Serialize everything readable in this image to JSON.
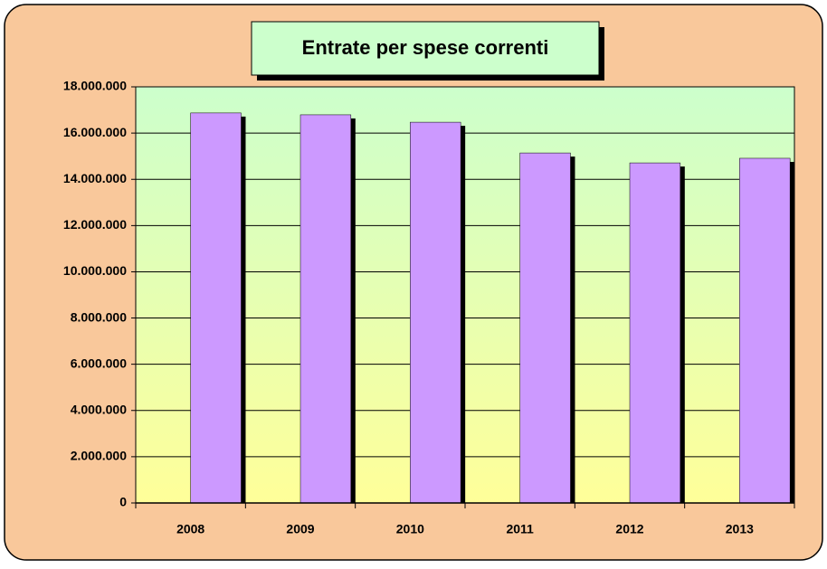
{
  "chart_data": {
    "type": "bar",
    "title": "Entrate per spese correnti",
    "categories": [
      "2008",
      "2009",
      "2010",
      "2011",
      "2012",
      "2013"
    ],
    "values": [
      16870000,
      16790000,
      16470000,
      15140000,
      14710000,
      14910000
    ],
    "color": "#cc99ff",
    "ylim": [
      0,
      18000000
    ],
    "yticks": [
      0,
      {
        "value": 2000000,
        "label": "2.000.000"
      },
      {
        "value": 4000000,
        "label": "4.000.000"
      },
      {
        "value": 6000000,
        "label": "6.000.000"
      },
      {
        "value": 8000000,
        "label": "8.000.000"
      },
      {
        "value": 10000000,
        "label": "10.000.000"
      },
      {
        "value": 12000000,
        "label": "12.000.000"
      },
      {
        "value": 14000000,
        "label": "14.000.000"
      },
      {
        "value": 16000000,
        "label": "16.000.000"
      },
      {
        "value": 18000000,
        "label": "18.000.000"
      }
    ],
    "grid": true
  }
}
